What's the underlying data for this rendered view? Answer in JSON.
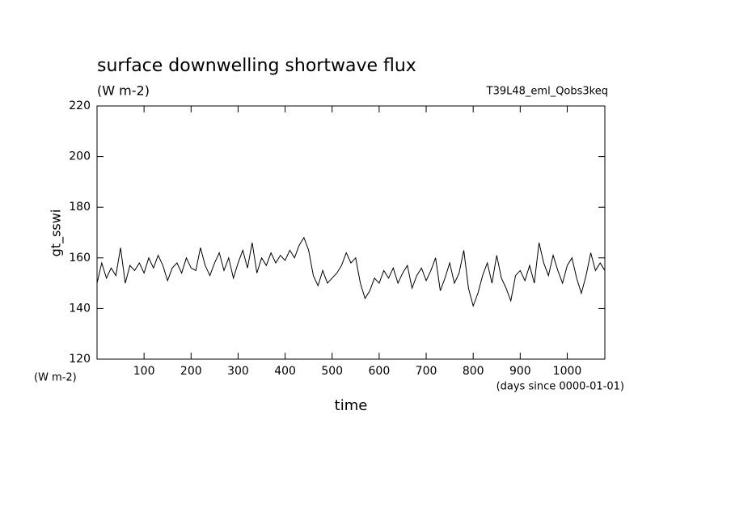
{
  "chart_data": {
    "type": "line",
    "title": "surface downwelling shortwave flux",
    "subtitle": "(W m-2)",
    "run_label": "T39L48_eml_Qobs3keq",
    "ylabel": "gt_sswi",
    "y_unit": "(W m-2)",
    "xlabel": "time",
    "x_unit": "(days since 0000-01-01)",
    "color": "#000000",
    "xlim": [
      0,
      1080
    ],
    "ylim": [
      120,
      220
    ],
    "xticks": [
      100,
      200,
      300,
      400,
      500,
      600,
      700,
      800,
      900,
      1000
    ],
    "yticks": [
      120,
      140,
      160,
      180,
      200,
      220
    ],
    "x": [
      0,
      10,
      20,
      30,
      40,
      50,
      60,
      70,
      80,
      90,
      100,
      110,
      120,
      130,
      140,
      150,
      160,
      170,
      180,
      190,
      200,
      210,
      220,
      230,
      240,
      250,
      260,
      270,
      280,
      290,
      300,
      310,
      320,
      330,
      340,
      350,
      360,
      370,
      380,
      390,
      400,
      410,
      420,
      430,
      440,
      450,
      460,
      470,
      480,
      490,
      500,
      510,
      520,
      530,
      540,
      550,
      560,
      570,
      580,
      590,
      600,
      610,
      620,
      630,
      640,
      650,
      660,
      670,
      680,
      690,
      700,
      710,
      720,
      730,
      740,
      750,
      760,
      770,
      780,
      790,
      800,
      810,
      820,
      830,
      840,
      850,
      860,
      870,
      880,
      890,
      900,
      910,
      920,
      930,
      940,
      950,
      960,
      970,
      980,
      990,
      1000,
      1010,
      1020,
      1030,
      1040,
      1050,
      1060,
      1070,
      1080
    ],
    "values": [
      150,
      158,
      152,
      156,
      153,
      164,
      150,
      157,
      155,
      158,
      154,
      160,
      156,
      161,
      157,
      151,
      156,
      158,
      154,
      160,
      156,
      155,
      164,
      157,
      153,
      158,
      162,
      155,
      160,
      152,
      158,
      163,
      156,
      166,
      154,
      160,
      157,
      162,
      158,
      161,
      159,
      163,
      160,
      165,
      168,
      163,
      153,
      149,
      155,
      150,
      152,
      154,
      157,
      162,
      158,
      160,
      150,
      144,
      147,
      152,
      150,
      155,
      152,
      156,
      150,
      154,
      157,
      148,
      153,
      156,
      151,
      155,
      160,
      147,
      152,
      158,
      150,
      154,
      163,
      148,
      141,
      146,
      153,
      158,
      150,
      161,
      152,
      148,
      143,
      153,
      155,
      151,
      157,
      150,
      166,
      158,
      153,
      161,
      155,
      150,
      157,
      160,
      152,
      146,
      153,
      162,
      155,
      158,
      155
    ]
  }
}
